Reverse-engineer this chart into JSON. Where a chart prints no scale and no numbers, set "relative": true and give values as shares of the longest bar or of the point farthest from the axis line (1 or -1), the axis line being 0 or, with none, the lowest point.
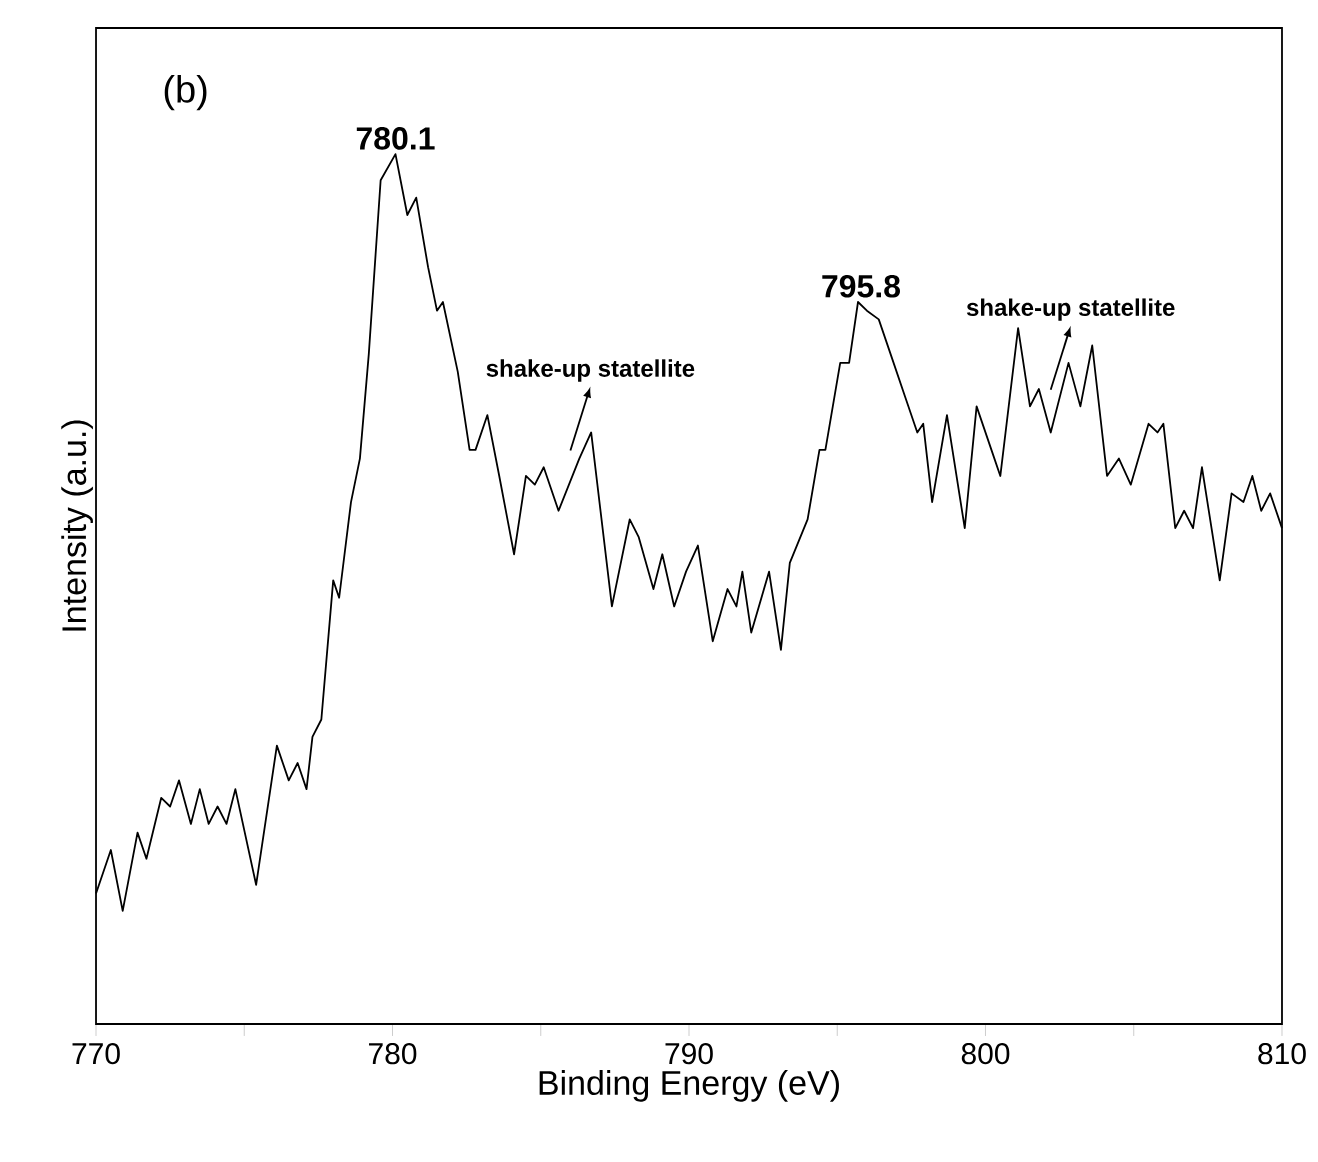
{
  "chart_data": {
    "type": "line",
    "relative": true,
    "xlabel": "Binding Energy (eV)",
    "ylabel": "Intensity (a.u.)",
    "xlim": [
      770,
      810
    ],
    "xticks": [
      770,
      {
        "value": 775,
        "label": null
      },
      780,
      {
        "value": 785,
        "label": null
      },
      790,
      {
        "value": 795,
        "label": null
      },
      800,
      {
        "value": 805,
        "label": null
      },
      810
    ],
    "marker": "none",
    "line_style": "solid",
    "series": [
      {
        "color": "#000000",
        "x": [
          770.0,
          770.5,
          770.9,
          771.4,
          771.7,
          772.2,
          772.5,
          772.8,
          773.2,
          773.5,
          773.8,
          774.1,
          774.4,
          774.7,
          775.4,
          776.1,
          776.5,
          776.8,
          777.1,
          777.3,
          777.6,
          778.0,
          778.2,
          778.6,
          778.9,
          779.2,
          779.6,
          780.1,
          780.5,
          780.8,
          781.2,
          781.5,
          781.7,
          782.2,
          782.6,
          782.8,
          783.2,
          783.6,
          784.1,
          784.5,
          784.8,
          785.1,
          785.6,
          786.3,
          786.7,
          787.4,
          788.0,
          788.3,
          788.8,
          789.1,
          789.5,
          789.9,
          790.3,
          790.8,
          791.3,
          791.6,
          791.8,
          792.1,
          792.7,
          793.1,
          793.4,
          794.0,
          794.4,
          794.6,
          795.1,
          795.4,
          795.7,
          796.0,
          796.4,
          796.9,
          797.3,
          797.7,
          797.9,
          798.2,
          798.7,
          799.3,
          799.7,
          800.2,
          800.5,
          801.1,
          801.5,
          801.8,
          802.2,
          802.8,
          803.2,
          803.6,
          804.1,
          804.5,
          804.9,
          805.5,
          805.8,
          806.0,
          806.4,
          806.7,
          807.0,
          807.3,
          807.9,
          808.3,
          808.7,
          809.0,
          809.3,
          809.6,
          810.0
        ],
        "values": [
          0.15,
          0.2,
          0.13,
          0.22,
          0.19,
          0.26,
          0.25,
          0.28,
          0.23,
          0.27,
          0.23,
          0.25,
          0.23,
          0.27,
          0.16,
          0.32,
          0.28,
          0.3,
          0.27,
          0.33,
          0.35,
          0.51,
          0.49,
          0.6,
          0.65,
          0.77,
          0.97,
          1.0,
          0.93,
          0.95,
          0.87,
          0.82,
          0.83,
          0.75,
          0.66,
          0.66,
          0.7,
          0.63,
          0.54,
          0.63,
          0.62,
          0.64,
          0.59,
          0.65,
          0.68,
          0.48,
          0.58,
          0.56,
          0.5,
          0.54,
          0.48,
          0.52,
          0.55,
          0.44,
          0.5,
          0.48,
          0.52,
          0.45,
          0.52,
          0.43,
          0.53,
          0.58,
          0.66,
          0.66,
          0.76,
          0.76,
          0.83,
          0.82,
          0.81,
          0.76,
          0.72,
          0.68,
          0.69,
          0.6,
          0.7,
          0.57,
          0.71,
          0.66,
          0.63,
          0.8,
          0.71,
          0.73,
          0.68,
          0.76,
          0.71,
          0.78,
          0.63,
          0.65,
          0.62,
          0.69,
          0.68,
          0.69,
          0.57,
          0.59,
          0.57,
          0.64,
          0.51,
          0.61,
          0.6,
          0.63,
          0.59,
          0.61,
          0.57
        ]
      }
    ],
    "annotations": [
      "(b)",
      {
        "text": "780.1",
        "x": 780.1,
        "y": 1.0
      },
      {
        "text": "795.8",
        "x": 795.8,
        "y": 0.83
      },
      {
        "text": "shake-up statellite",
        "x": 786.0,
        "y": 0.65
      },
      {
        "text": "shake-up statellite",
        "x": 802.2,
        "y": 0.72
      }
    ]
  }
}
